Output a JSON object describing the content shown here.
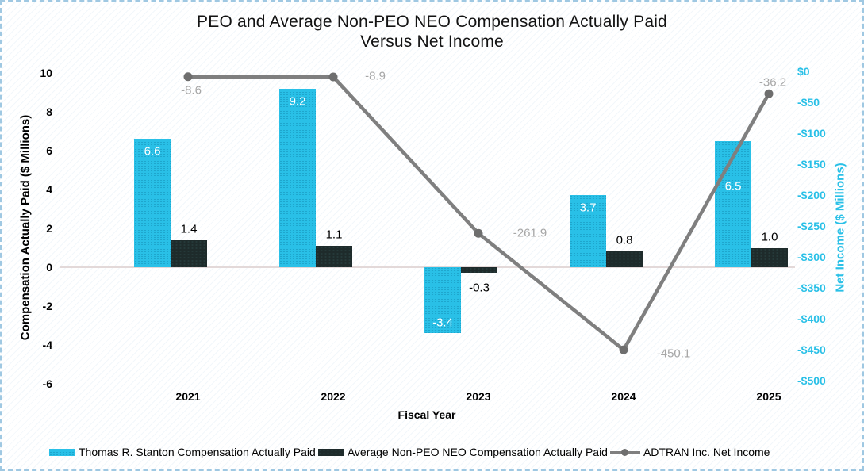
{
  "page": {
    "background_color": "#ffffff",
    "border_color": "#9fc8e2"
  },
  "chart_data": {
    "type": "bar",
    "title_line1": "PEO and Average Non-PEO NEO Compensation Actually Paid",
    "title_line2": "Versus Net Income",
    "categories": [
      "2021",
      "2022",
      "2023",
      "2024",
      "2025"
    ],
    "series": [
      {
        "name": "Thomas R. Stanton Compensation Actually Paid",
        "type": "bar",
        "axis": "left",
        "color": "#29c0e7",
        "label_color": "#ffffff",
        "values": [
          6.6,
          9.2,
          -3.4,
          3.7,
          6.5
        ]
      },
      {
        "name": "Average Non-PEO NEO Compensation Actually Paid",
        "type": "bar",
        "axis": "left",
        "color": "#1e2b2b",
        "label_color": "#000000",
        "values": [
          1.4,
          1.1,
          -0.3,
          0.8,
          1.0
        ]
      },
      {
        "name": "ADTRAN Inc. Net Income",
        "type": "line",
        "axis": "right",
        "color": "#7f7f7f",
        "marker_color": "#6e6e6e",
        "label_color": "#a6a6a6",
        "values": [
          -8.6,
          -8.9,
          -261.9,
          -450.1,
          -36.2
        ]
      }
    ],
    "xlabel": "Fiscal Year",
    "ylabel_left": "Compensation Actually Paid ($ Millions)",
    "ylabel_right": "Net Income ($ Millions)",
    "ylim_left": [
      -6,
      10
    ],
    "ylim_right": [
      -500,
      0
    ],
    "yticks_left_labels": [
      "10",
      "8",
      "6",
      "4",
      "2",
      "0",
      "-2",
      "-4",
      "-6"
    ],
    "yticks_left_values": [
      10,
      8,
      6,
      4,
      2,
      0,
      -2,
      -4,
      -6
    ],
    "yticks_right_labels": [
      "$0",
      "-$50",
      "-$100",
      "-$150",
      "-$200",
      "-$250",
      "-$300",
      "-$350",
      "-$400",
      "-$450",
      "-$500"
    ],
    "yticks_right_values": [
      0,
      -50,
      -100,
      -150,
      -200,
      -250,
      -300,
      -350,
      -400,
      -450,
      -500
    ],
    "grid": false,
    "legend_position": "bottom",
    "colors": {
      "left_axis_text": "#000000",
      "right_axis_text": "#29c0e7",
      "zero_line": "#e3d9d9"
    }
  }
}
